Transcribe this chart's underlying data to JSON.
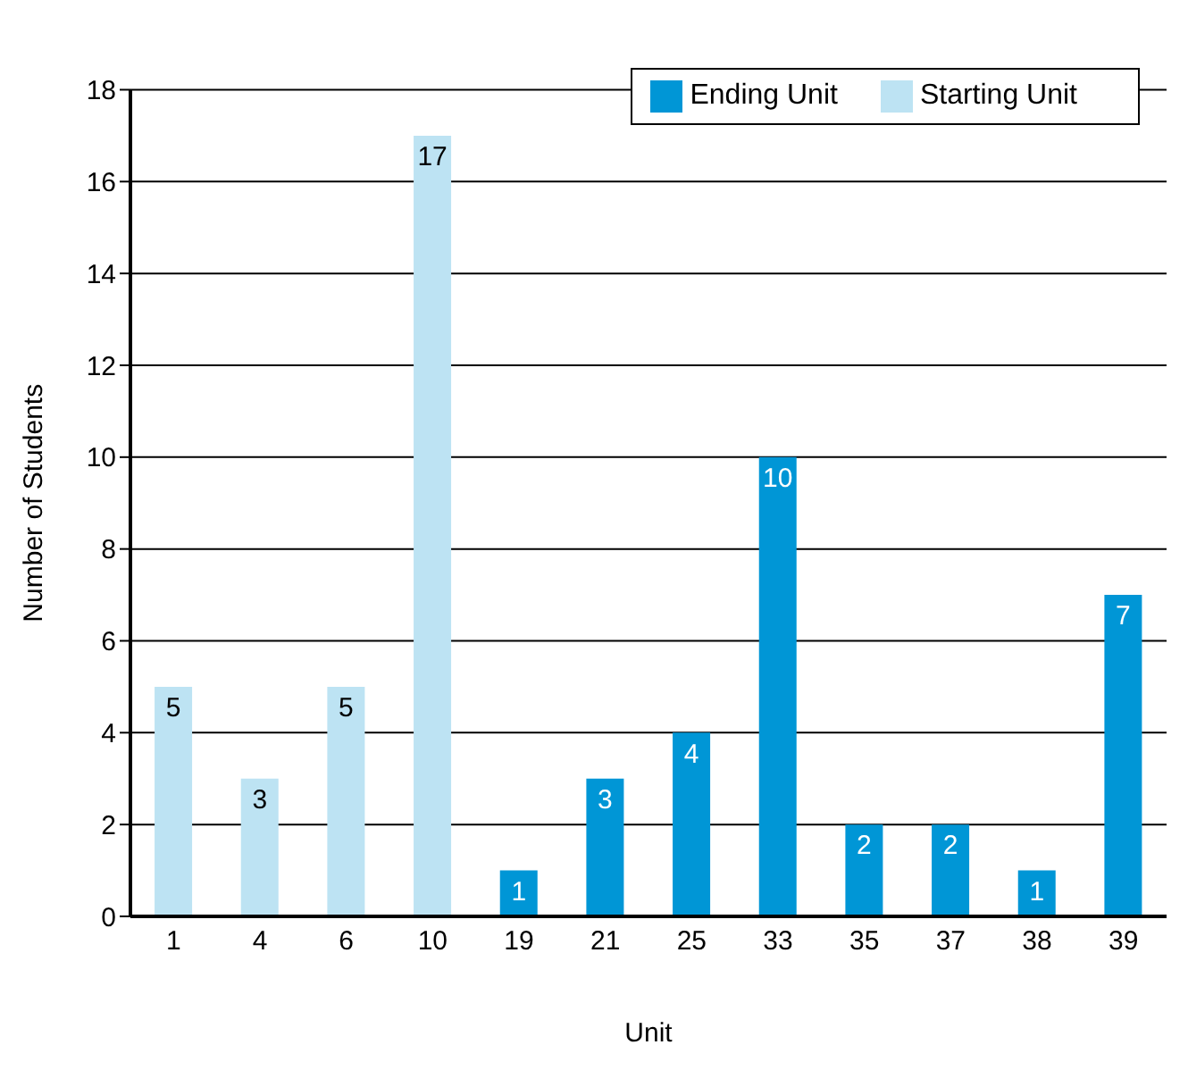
{
  "chart_data": {
    "type": "bar",
    "categories": [
      "1",
      "4",
      "6",
      "10",
      "19",
      "21",
      "25",
      "33",
      "35",
      "37",
      "38",
      "39"
    ],
    "series": [
      {
        "name": "Starting Unit",
        "color": "#bde3f3",
        "values": [
          5,
          3,
          5,
          17,
          null,
          null,
          null,
          null,
          null,
          null,
          null,
          null
        ]
      },
      {
        "name": "Ending Unit",
        "color": "#0096d6",
        "values": [
          null,
          null,
          null,
          null,
          1,
          3,
          4,
          10,
          2,
          2,
          1,
          7
        ]
      }
    ],
    "xlabel": "Unit",
    "ylabel": "Number of Students",
    "ylim": [
      0,
      18
    ],
    "yticks": [
      0,
      2,
      4,
      6,
      8,
      10,
      12,
      14,
      16,
      18
    ],
    "grid": "y",
    "legend": "top right",
    "data_labels": true
  }
}
